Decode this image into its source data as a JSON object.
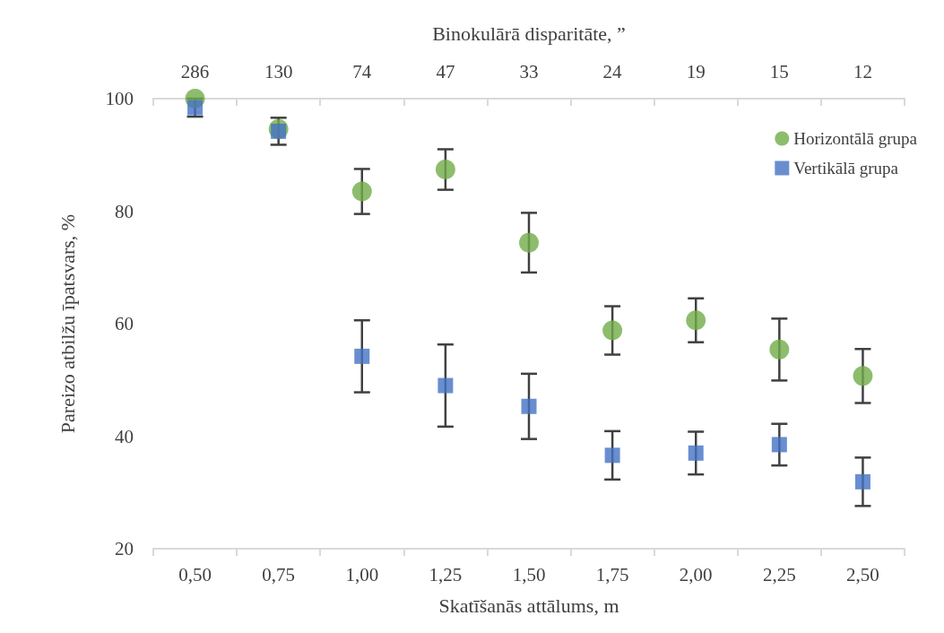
{
  "chart_data": {
    "type": "scatter",
    "xlabel": "Skatīšanās attālums, m",
    "ylabel": "Pareizo atbilžu īpatsvars, %",
    "x2label": "Binokulārā disparitāte, ”",
    "categories": [
      "0,50",
      "0,75",
      "1,00",
      "1,25",
      "1,50",
      "1,75",
      "2,00",
      "2,25",
      "2,50"
    ],
    "annotations": [
      "286",
      "130",
      "74",
      "47",
      "33",
      "24",
      "19",
      "15",
      "12"
    ],
    "ylim": [
      20,
      100
    ],
    "yticks": [
      20,
      40,
      60,
      80,
      100
    ],
    "grid": false,
    "legend": "top right",
    "series": [
      {
        "name": "Horizontālā grupa",
        "color": "#70ad47",
        "marker": "circle",
        "values": [
          100,
          94.6,
          83.5,
          87.4,
          74.4,
          58.8,
          60.6,
          55.4,
          50.7
        ],
        "errors": [
          null,
          null,
          4,
          3.6,
          5.3,
          4.3,
          3.9,
          5.5,
          4.8
        ]
      },
      {
        "name": "Vertikālā grupa",
        "color": "#4472c4",
        "marker": "square",
        "values": [
          98.4,
          94.2,
          54.2,
          49.0,
          45.3,
          36.6,
          37.0,
          38.5,
          31.9
        ],
        "errors": [
          1.6,
          2.4,
          6.4,
          7.3,
          5.8,
          4.3,
          3.8,
          3.7,
          4.3
        ]
      }
    ]
  }
}
